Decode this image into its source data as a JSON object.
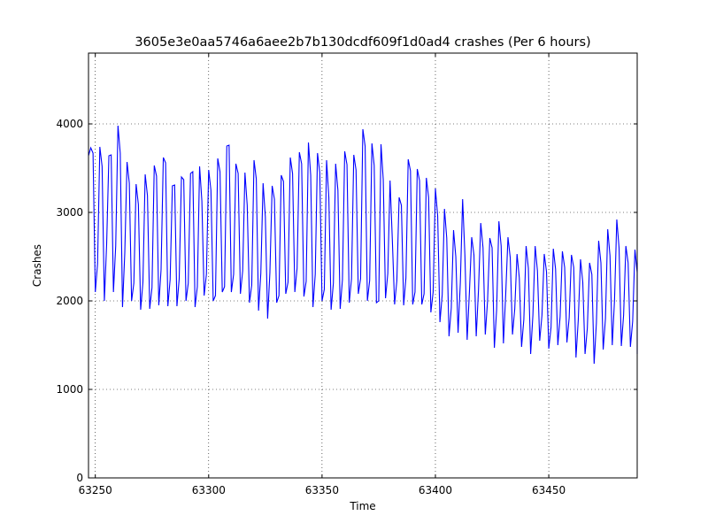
{
  "chart_data": {
    "type": "line",
    "title": "3605e3e0aa5746a6aee2b7b130dcdf609f1d0ad4 crashes (Per 6 hours)",
    "xlabel": "Time",
    "ylabel": "Crashes",
    "xlim": [
      63247,
      63489
    ],
    "ylim": [
      0,
      4800
    ],
    "xticks": [
      63250,
      63300,
      63350,
      63400,
      63450
    ],
    "yticks": [
      0,
      1000,
      2000,
      3000,
      4000
    ],
    "xtick_labels": [
      "63250",
      "63300",
      "63350",
      "63400",
      "63450"
    ],
    "ytick_labels": [
      "0",
      "1000",
      "2000",
      "3000",
      "4000"
    ],
    "grid": true,
    "series": [
      {
        "color": "#0000ff",
        "x_start": 63247,
        "x_step": 1,
        "values": [
          3640,
          3730,
          3670,
          2100,
          2420,
          3740,
          3520,
          2000,
          2640,
          3640,
          3650,
          2100,
          2620,
          3980,
          3670,
          1930,
          2540,
          3570,
          3330,
          2000,
          2200,
          3320,
          3090,
          1900,
          2210,
          3430,
          3190,
          1910,
          2150,
          3530,
          3410,
          1950,
          2350,
          3620,
          3560,
          1940,
          2240,
          3300,
          3310,
          1940,
          2250,
          3400,
          3370,
          2000,
          2200,
          3440,
          3460,
          1930,
          2160,
          3520,
          3130,
          2060,
          2300,
          3480,
          3250,
          2000,
          2060,
          3610,
          3460,
          2100,
          2160,
          3750,
          3760,
          2100,
          2300,
          3550,
          3440,
          2080,
          2340,
          3450,
          3080,
          1980,
          2180,
          3590,
          3380,
          1890,
          2310,
          3330,
          2950,
          1800,
          2320,
          3300,
          3150,
          1980,
          2060,
          3420,
          3350,
          2080,
          2210,
          3620,
          3440,
          2100,
          2370,
          3680,
          3550,
          2050,
          2220,
          3790,
          3420,
          1930,
          2300,
          3670,
          3450,
          2000,
          2130,
          3590,
          3170,
          1900,
          2200,
          3550,
          3250,
          1910,
          2240,
          3690,
          3540,
          1980,
          2250,
          3650,
          3480,
          2080,
          2250,
          3940,
          3750,
          2000,
          2230,
          3780,
          3530,
          1980,
          2000,
          3770,
          3370,
          2030,
          2310,
          3360,
          2690,
          1960,
          2230,
          3170,
          3080,
          1950,
          2260,
          3600,
          3470,
          1960,
          2100,
          3490,
          3360,
          1960,
          2080,
          3390,
          3170,
          1870,
          2100,
          3270,
          2960,
          1760,
          2070,
          3040,
          2710,
          1600,
          1920,
          2800,
          2500,
          1640,
          2210,
          3150,
          2520,
          1560,
          2100,
          2720,
          2520,
          1600,
          2120,
          2880,
          2600,
          1620,
          2000,
          2710,
          2600,
          1470,
          1900,
          2900,
          2620,
          1520,
          2070,
          2720,
          2490,
          1620,
          1910,
          2530,
          2260,
          1480,
          1790,
          2620,
          2370,
          1400,
          1840,
          2620,
          2340,
          1550,
          1840,
          2530,
          2330,
          1460,
          1700,
          2590,
          2360,
          1500,
          1820,
          2560,
          2380,
          1530,
          1810,
          2520,
          2380,
          1360,
          1780,
          2470,
          2210,
          1400,
          1690,
          2430,
          2300,
          1290,
          1750,
          2680,
          2430,
          1450,
          1800,
          2810,
          2510,
          1500,
          2010,
          2920,
          2600,
          1490,
          1840,
          2620,
          2430,
          1480,
          1770,
          2580,
          2320,
          1400,
          2150,
          2430,
          2110
        ]
      }
    ]
  }
}
